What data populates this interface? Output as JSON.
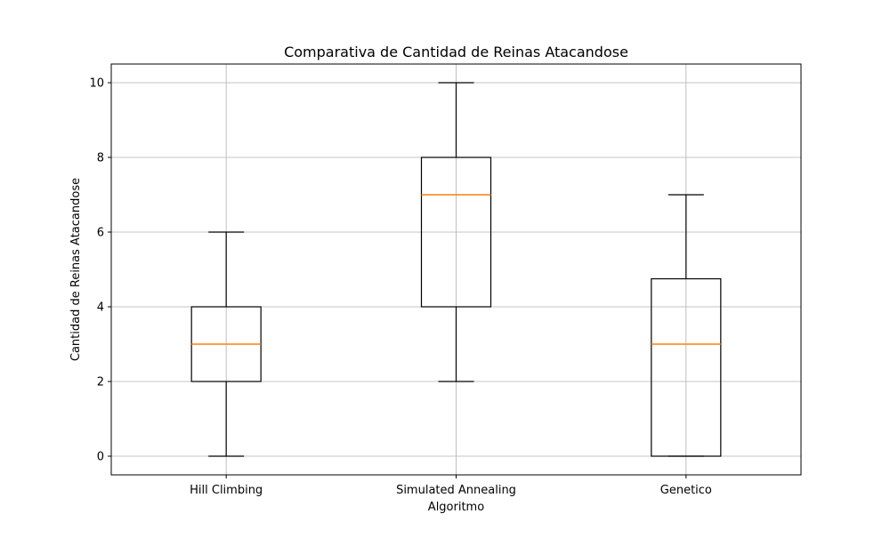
{
  "chart_data": {
    "type": "boxplot",
    "title": "Comparativa de Cantidad de Reinas Atacandose",
    "xlabel": "Algoritmo",
    "ylabel": "Cantidad de Reinas Atacandose",
    "ylim": [
      -0.5,
      10.5
    ],
    "yticks": [
      0,
      2,
      4,
      6,
      8,
      10
    ],
    "grid": true,
    "categories": [
      "Hill Climbing",
      "Simulated Annealing",
      "Genetico"
    ],
    "boxes": [
      {
        "category": "Hill Climbing",
        "whisker_low": 0,
        "q1": 2,
        "median": 3,
        "q3": 4,
        "whisker_high": 6
      },
      {
        "category": "Simulated Annealing",
        "whisker_low": 2,
        "q1": 4,
        "median": 7,
        "q3": 8,
        "whisker_high": 10
      },
      {
        "category": "Genetico",
        "whisker_low": 0,
        "q1": 0,
        "median": 3,
        "q3": 4.75,
        "whisker_high": 7
      }
    ],
    "colors": {
      "box": "#000000",
      "median": "#ff7f0e",
      "grid": "#b0b0b0"
    }
  }
}
